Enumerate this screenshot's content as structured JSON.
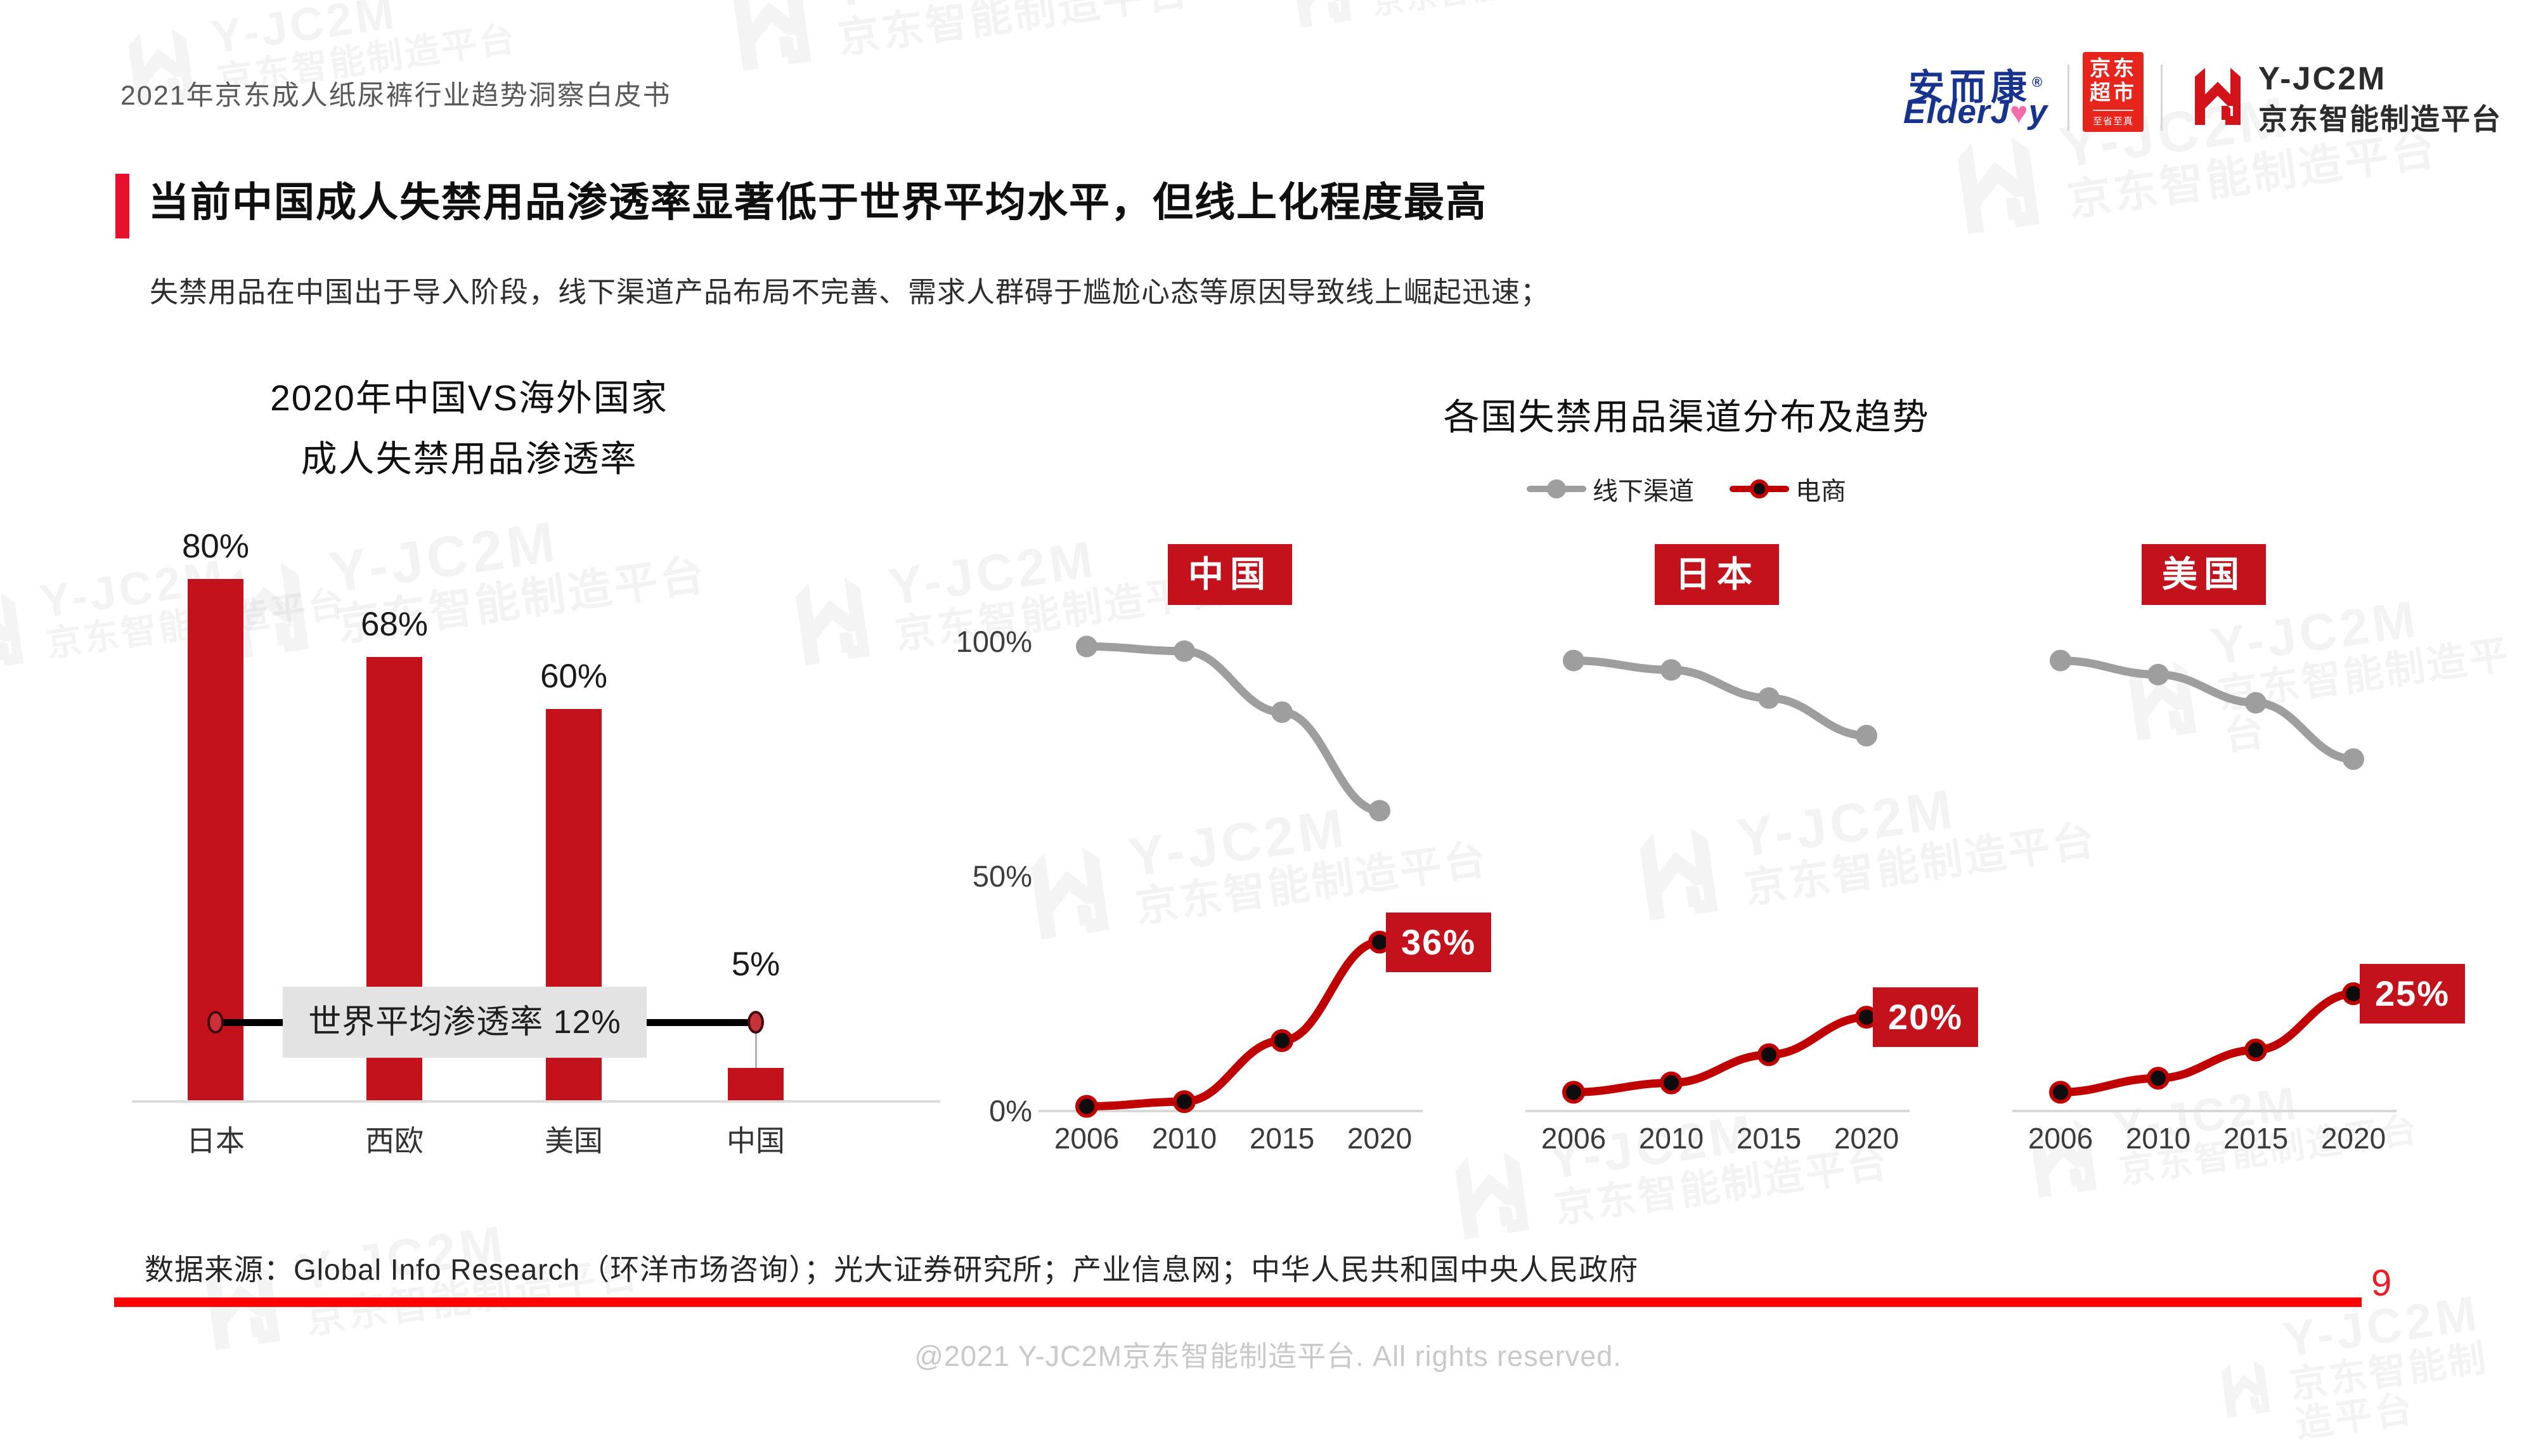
{
  "page": {
    "header_title": "2021年京东成人纸尿裤行业趋势洞察白皮书",
    "source": "数据来源：Global Info Research（环洋市场咨询）；光大证券研究所；产业信息网；中华人民共和国中央人民政府",
    "page_number": "9",
    "footer": "@2021 Y-JC2M京东智能制造平台. All rights reserved."
  },
  "logos": {
    "elderjoy_cn": "安而康",
    "elderjoy_reg": "®",
    "elderjoy_en_pre": "ElderJ",
    "elderjoy_heart": "♥",
    "elderjoy_en_post": "y",
    "jd_line1": "京东",
    "jd_line2": "超市",
    "jd_sub": "至省至真",
    "yjc2m_name": "Y-JC2M",
    "yjc2m_sub": "京东智能制造平台"
  },
  "title": {
    "text": "当前中国成人失禁用品渗透率显著低于世界平均水平，但线上化程度最高",
    "subtitle": "失禁用品在中国出于导入阶段，线下渠道产品布局不完善、需求人群碍于尴尬心态等原因导致线上崛起迅速；"
  },
  "watermark": {
    "brand": "Y-JC2M",
    "sub": "京东智能制造平台"
  },
  "colors": {
    "brand_red": "#c3121c",
    "title_bar_red": "#e8112d",
    "bottom_line_red": "#fe0101",
    "jd_logo_red": "#e8251d",
    "elderjoy_blue": "#17338d",
    "gray_series": "#9e9e9e",
    "ref_label_bg": "#e3e3e3",
    "header_gray": "#595959",
    "footer_gray": "#c9c9c9"
  },
  "chart_data": [
    {
      "type": "bar",
      "title_line1": "2020年中国VS海外国家",
      "title_line2": "成人失禁用品渗透率",
      "categories": [
        "日本",
        "西欧",
        "美国",
        "中国"
      ],
      "values": [
        80,
        68,
        60,
        5
      ],
      "value_labels": [
        "80%",
        "68%",
        "60%",
        "5%"
      ],
      "ylim": [
        0,
        100
      ],
      "bar_color": "#c3121c",
      "reference_line": {
        "label": "世界平均渗透率 12%",
        "value": 12,
        "connects_to_category": "中国"
      }
    },
    {
      "type": "line",
      "title": "各国失禁用品渠道分布及趋势",
      "x": [
        "2006",
        "2010",
        "2015",
        "2020"
      ],
      "yticks": [
        {
          "label": "100%",
          "value": 100
        },
        {
          "label": "50%",
          "value": 50
        },
        {
          "label": "0%",
          "value": 0
        }
      ],
      "ylim": [
        0,
        100
      ],
      "legend": [
        {
          "name": "线下渠道",
          "color": "#9e9e9e",
          "marker": "#9e9e9e"
        },
        {
          "name": "电商",
          "color": "#c00000",
          "marker": "#0d0d0d"
        }
      ],
      "panels": [
        {
          "country": "中国",
          "series": [
            {
              "name": "线下渠道",
              "color": "#9e9e9e",
              "marker": "#9e9e9e",
              "values": [
                99,
                98,
                85,
                64
              ]
            },
            {
              "name": "电商",
              "color": "#c00000",
              "marker": "#0d0d0d",
              "values": [
                1,
                2,
                15,
                36
              ],
              "end_label": "36%"
            }
          ]
        },
        {
          "country": "日本",
          "series": [
            {
              "name": "线下渠道",
              "color": "#9e9e9e",
              "marker": "#9e9e9e",
              "values": [
                96,
                94,
                88,
                80
              ]
            },
            {
              "name": "电商",
              "color": "#c00000",
              "marker": "#0d0d0d",
              "values": [
                4,
                6,
                12,
                20
              ],
              "end_label": "20%"
            }
          ]
        },
        {
          "country": "美国",
          "series": [
            {
              "name": "线下渠道",
              "color": "#9e9e9e",
              "marker": "#9e9e9e",
              "values": [
                96,
                93,
                87,
                75
              ]
            },
            {
              "name": "电商",
              "color": "#c00000",
              "marker": "#0d0d0d",
              "values": [
                4,
                7,
                13,
                25
              ],
              "end_label": "25%"
            }
          ]
        }
      ]
    }
  ]
}
